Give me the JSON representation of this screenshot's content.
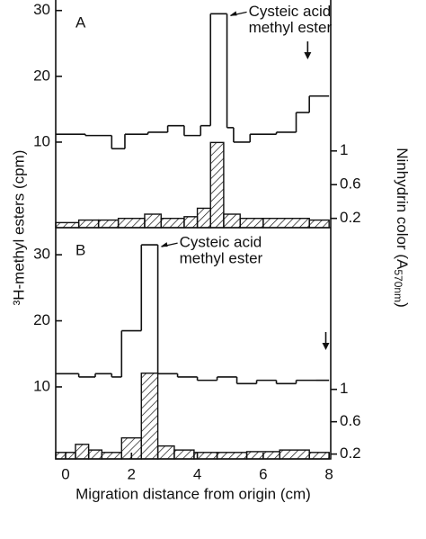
{
  "ylabel": "³H-methyl esters (cpm)",
  "y2label": [
    "Ninhydrin color  (A",
    "570nm",
    ")"
  ],
  "xlabel": "Migration distance from origin  (cm)",
  "chart_data": [
    {
      "type": "step",
      "panel": "A",
      "annotation": [
        "Cysteic acid",
        "methyl ester"
      ],
      "xlim": [
        -0.3,
        8.05
      ],
      "ylim": [
        -3.0,
        31.6
      ],
      "yticks": [
        10,
        20,
        30
      ],
      "y2lim": [
        0.09,
        2.79
      ],
      "y2ticks": [
        0.2,
        0.6,
        1.0
      ],
      "series": [
        {
          "name": "cpm",
          "color": "#111",
          "bins": [
            -0.3,
            0.6,
            1.4,
            1.8,
            2.5,
            3.1,
            3.6,
            4.1,
            4.4,
            4.9,
            5.1,
            5.6,
            6.4,
            7.0,
            7.4,
            8.0
          ],
          "values": [
            11.2,
            11,
            9,
            11.2,
            11.5,
            12.5,
            11,
            12.5,
            29.5,
            12.2,
            10,
            11.2,
            11.5,
            14.5,
            17
          ]
        },
        {
          "name": "A570",
          "axis": "y2",
          "color": "#111",
          "hatched": true,
          "bins": [
            -0.3,
            0.4,
            1.0,
            1.6,
            2.4,
            2.9,
            3.6,
            4.0,
            4.4,
            4.8,
            5.3,
            6.0,
            7.4,
            8.0
          ],
          "values": [
            0.15,
            0.18,
            0.18,
            0.2,
            0.25,
            0.2,
            0.22,
            0.32,
            1.1,
            0.25,
            0.2,
            0.2,
            0.18
          ]
        }
      ]
    },
    {
      "type": "step",
      "panel": "B",
      "annotation": [
        "Cysteic acid",
        "methyl ester"
      ],
      "xlim": [
        -0.3,
        8.05
      ],
      "xticks": [
        0,
        2,
        4,
        6,
        8
      ],
      "ylim": [
        -0.9,
        34.1
      ],
      "yticks": [
        10,
        20,
        30
      ],
      "y2lim": [
        0.14,
        3.0
      ],
      "y2ticks": [
        0.2,
        0.6,
        1.0
      ],
      "series": [
        {
          "name": "cpm",
          "color": "#111",
          "bins": [
            -0.3,
            0.4,
            0.9,
            1.4,
            1.7,
            2.3,
            2.8,
            3.4,
            4.0,
            4.6,
            5.2,
            5.8,
            6.4,
            7.0,
            7.6,
            8.0
          ],
          "values": [
            12,
            11.5,
            12,
            11.5,
            18.5,
            31.5,
            12,
            11.5,
            11,
            11.5,
            10.5,
            11,
            10.5,
            11,
            11
          ]
        },
        {
          "name": "A570",
          "axis": "y2",
          "color": "#111",
          "hatched": true,
          "bins": [
            -0.3,
            0.3,
            0.7,
            1.1,
            1.7,
            2.3,
            2.8,
            3.3,
            3.9,
            4.6,
            5.5,
            6.5,
            7.4,
            8.0
          ],
          "values": [
            0.22,
            0.32,
            0.25,
            0.22,
            0.4,
            1.2,
            0.3,
            0.25,
            0.22,
            0.22,
            0.23,
            0.25,
            0.22
          ]
        }
      ]
    }
  ]
}
